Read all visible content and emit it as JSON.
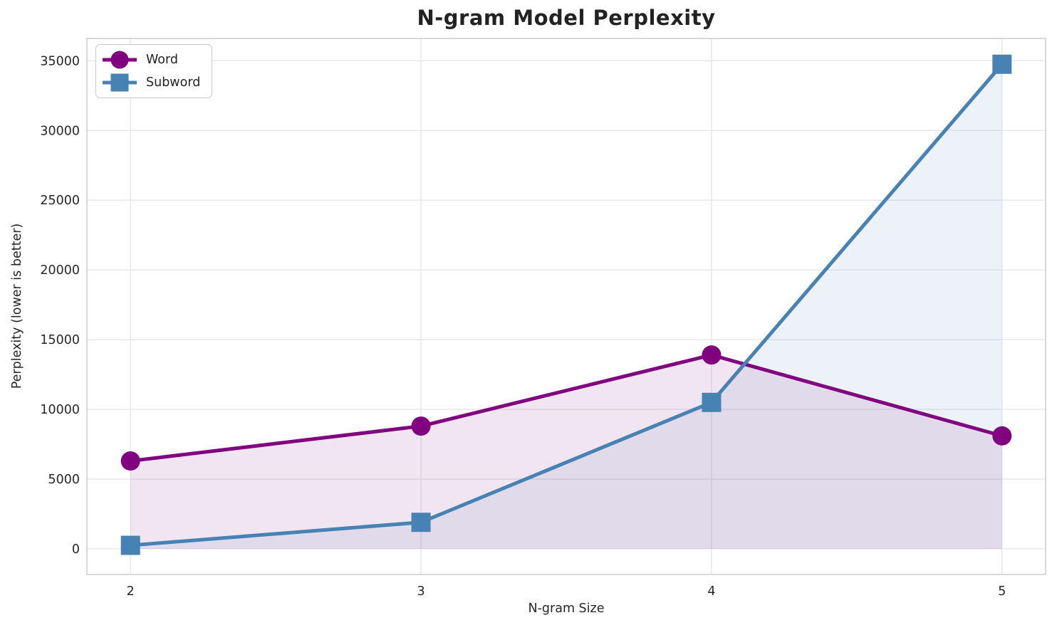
{
  "styles": {
    "background": "#ffffff",
    "text_color": "#262626",
    "title_color": "#222222",
    "grid_color": "#e7e7ea",
    "spine_color": "#cccccc",
    "legend_border": "#cccccc"
  },
  "chart_data": {
    "type": "line",
    "title": "N-gram Model Perplexity",
    "xlabel": "N-gram Size",
    "ylabel": "Perplexity (lower is better)",
    "x": [
      2,
      3,
      4,
      5
    ],
    "xticks": [
      "2",
      "3",
      "4",
      "5"
    ],
    "yticks": [
      0,
      5000,
      10000,
      15000,
      20000,
      25000,
      30000,
      35000
    ],
    "xlim": [
      1.85,
      5.15
    ],
    "ylim": [
      -1840,
      36600
    ],
    "grid": "both",
    "legend_position": "upper left",
    "fill_baseline": 0,
    "line_width": 5,
    "marker_diameter": 27,
    "fill_alpha": 0.1,
    "series": [
      {
        "name": "Word",
        "color": "#800080",
        "marker": "circle",
        "values": [
          6300,
          8800,
          13900,
          8100
        ]
      },
      {
        "name": "Subword",
        "color": "#4682b4",
        "marker": "square",
        "values": [
          250,
          1900,
          10500,
          34750
        ]
      }
    ]
  }
}
